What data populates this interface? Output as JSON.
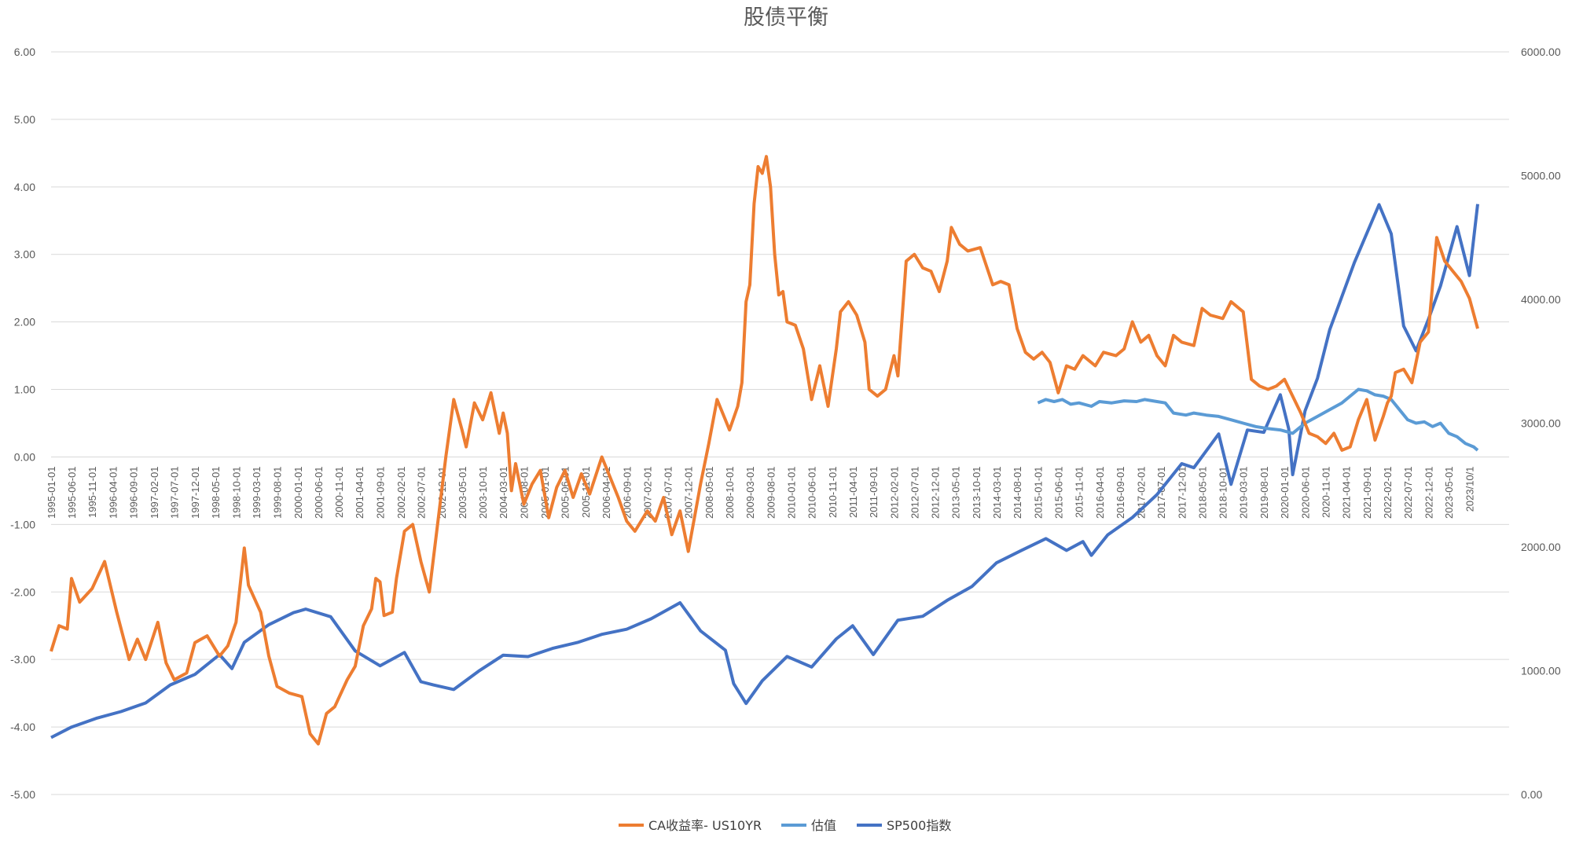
{
  "chart_data": {
    "type": "line",
    "title": "股债平衡",
    "left_axis": {
      "ylim": [
        -5,
        6
      ],
      "ticks": [
        "6.00",
        "5.00",
        "4.00",
        "3.00",
        "2.00",
        "1.00",
        "0.00",
        "-1.00",
        "-2.00",
        "-3.00",
        "-4.00",
        "-5.00"
      ]
    },
    "right_axis": {
      "ylim": [
        0,
        6000
      ],
      "ticks": [
        "6000.00",
        "5000.00",
        "4000.00",
        "3000.00",
        "2000.00",
        "1000.00",
        "0.00"
      ]
    },
    "x_axis_labels": [
      "1995-01-01",
      "1995-06-01",
      "1995-11-01",
      "1996-04-01",
      "1996-09-01",
      "1997-02-01",
      "1997-07-01",
      "1997-12-01",
      "1998-05-01",
      "1998-10-01",
      "1999-03-01",
      "1999-08-01",
      "2000-01-01",
      "2000-06-01",
      "2000-11-01",
      "2001-04-01",
      "2001-09-01",
      "2002-02-01",
      "2002-07-01",
      "2002-12-01",
      "2003-05-01",
      "2003-10-01",
      "2004-03-01",
      "2004-08-01",
      "2005-01-01",
      "2005-06-01",
      "2005-11-01",
      "2006-04-01",
      "2006-09-01",
      "2007-02-01",
      "2007-07-01",
      "2007-12-01",
      "2008-05-01",
      "2008-10-01",
      "2009-03-01",
      "2009-08-01",
      "2010-01-01",
      "2010-06-01",
      "2010-11-01",
      "2011-04-01",
      "2011-09-01",
      "2012-02-01",
      "2012-07-01",
      "2012-12-01",
      "2013-05-01",
      "2013-10-01",
      "2014-03-01",
      "2014-08-01",
      "2015-01-01",
      "2015-06-01",
      "2015-11-01",
      "2016-04-01",
      "2016-09-01",
      "2017-02-01",
      "2017-07-01",
      "2017-12-01",
      "2018-05-01",
      "2018-10-01",
      "2019-03-01",
      "2019-08-01",
      "2020-01-01",
      "2020-06-01",
      "2020-11-01",
      "2021-04-01",
      "2021-09-01",
      "2022-02-01",
      "2022-07-01",
      "2022-12-01",
      "2023-05-01",
      "2023/10/1"
    ],
    "legend_position": "bottom",
    "grid": true,
    "series": [
      {
        "name": "CA收益率- US10YR",
        "axis": "left",
        "color": "#ed7d31",
        "points": [
          [
            "1995-01",
            -2.88
          ],
          [
            "1995-03",
            -2.5
          ],
          [
            "1995-05",
            -2.55
          ],
          [
            "1995-06",
            -1.8
          ],
          [
            "1995-08",
            -2.15
          ],
          [
            "1995-11",
            -1.95
          ],
          [
            "1996-02",
            -1.55
          ],
          [
            "1996-05",
            -2.3
          ],
          [
            "1996-08",
            -3.0
          ],
          [
            "1996-10",
            -2.7
          ],
          [
            "1996-12",
            -3.0
          ],
          [
            "1997-03",
            -2.45
          ],
          [
            "1997-05",
            -3.05
          ],
          [
            "1997-07",
            -3.3
          ],
          [
            "1997-10",
            -3.2
          ],
          [
            "1997-12",
            -2.75
          ],
          [
            "1998-03",
            -2.65
          ],
          [
            "1998-06",
            -2.95
          ],
          [
            "1998-08",
            -2.8
          ],
          [
            "1998-10",
            -2.45
          ],
          [
            "1998-12",
            -1.35
          ],
          [
            "1999-01",
            -1.9
          ],
          [
            "1999-04",
            -2.3
          ],
          [
            "1999-06",
            -2.95
          ],
          [
            "1999-08",
            -3.4
          ],
          [
            "1999-11",
            -3.5
          ],
          [
            "2000-02",
            -3.55
          ],
          [
            "2000-04",
            -4.1
          ],
          [
            "2000-06",
            -4.25
          ],
          [
            "2000-08",
            -3.8
          ],
          [
            "2000-10",
            -3.7
          ],
          [
            "2001-01",
            -3.3
          ],
          [
            "2001-03",
            -3.1
          ],
          [
            "2001-05",
            -2.5
          ],
          [
            "2001-07",
            -2.25
          ],
          [
            "2001-08",
            -1.8
          ],
          [
            "2001-09",
            -1.85
          ],
          [
            "2001-10",
            -2.35
          ],
          [
            "2001-12",
            -2.3
          ],
          [
            "2002-01",
            -1.8
          ],
          [
            "2002-03",
            -1.1
          ],
          [
            "2002-05",
            -1.0
          ],
          [
            "2002-07",
            -1.55
          ],
          [
            "2002-09",
            -2.0
          ],
          [
            "2002-11",
            -1.0
          ],
          [
            "2003-01",
            0.0
          ],
          [
            "2003-03",
            0.85
          ],
          [
            "2003-05",
            0.4
          ],
          [
            "2003-06",
            0.15
          ],
          [
            "2003-08",
            0.8
          ],
          [
            "2003-10",
            0.55
          ],
          [
            "2003-12",
            0.95
          ],
          [
            "2004-02",
            0.35
          ],
          [
            "2004-03",
            0.65
          ],
          [
            "2004-04",
            0.35
          ],
          [
            "2004-05",
            -0.5
          ],
          [
            "2004-06",
            -0.1
          ],
          [
            "2004-08",
            -0.7
          ],
          [
            "2004-10",
            -0.4
          ],
          [
            "2004-12",
            -0.2
          ],
          [
            "2005-02",
            -0.9
          ],
          [
            "2005-04",
            -0.45
          ],
          [
            "2005-06",
            -0.2
          ],
          [
            "2005-08",
            -0.6
          ],
          [
            "2005-10",
            -0.25
          ],
          [
            "2005-12",
            -0.55
          ],
          [
            "2006-03",
            0.0
          ],
          [
            "2006-05",
            -0.3
          ],
          [
            "2006-07",
            -0.6
          ],
          [
            "2006-09",
            -0.95
          ],
          [
            "2006-11",
            -1.1
          ],
          [
            "2007-02",
            -0.8
          ],
          [
            "2007-04",
            -0.95
          ],
          [
            "2007-06",
            -0.6
          ],
          [
            "2007-08",
            -1.15
          ],
          [
            "2007-10",
            -0.8
          ],
          [
            "2007-12",
            -1.4
          ],
          [
            "2008-03",
            -0.4
          ],
          [
            "2008-05",
            0.2
          ],
          [
            "2008-07",
            0.85
          ],
          [
            "2008-09",
            0.55
          ],
          [
            "2008-10",
            0.4
          ],
          [
            "2008-12",
            0.75
          ],
          [
            "2009-01",
            1.1
          ],
          [
            "2009-02",
            2.3
          ],
          [
            "2009-03",
            2.55
          ],
          [
            "2009-04",
            3.75
          ],
          [
            "2009-05",
            4.3
          ],
          [
            "2009-06",
            4.2
          ],
          [
            "2009-07",
            4.45
          ],
          [
            "2009-08",
            4.0
          ],
          [
            "2009-09",
            3.0
          ],
          [
            "2009-10",
            2.4
          ],
          [
            "2009-11",
            2.45
          ],
          [
            "2009-12",
            2.0
          ],
          [
            "2010-02",
            1.95
          ],
          [
            "2010-04",
            1.6
          ],
          [
            "2010-06",
            0.85
          ],
          [
            "2010-08",
            1.35
          ],
          [
            "2010-10",
            0.75
          ],
          [
            "2010-12",
            1.6
          ],
          [
            "2011-01",
            2.15
          ],
          [
            "2011-03",
            2.3
          ],
          [
            "2011-05",
            2.1
          ],
          [
            "2011-07",
            1.7
          ],
          [
            "2011-08",
            1.0
          ],
          [
            "2011-10",
            0.9
          ],
          [
            "2011-12",
            1.0
          ],
          [
            "2012-02",
            1.5
          ],
          [
            "2012-03",
            1.2
          ],
          [
            "2012-05",
            2.9
          ],
          [
            "2012-07",
            3.0
          ],
          [
            "2012-09",
            2.8
          ],
          [
            "2012-11",
            2.75
          ],
          [
            "2013-01",
            2.45
          ],
          [
            "2013-03",
            2.9
          ],
          [
            "2013-04",
            3.4
          ],
          [
            "2013-06",
            3.15
          ],
          [
            "2013-08",
            3.05
          ],
          [
            "2013-11",
            3.1
          ],
          [
            "2014-02",
            2.55
          ],
          [
            "2014-04",
            2.6
          ],
          [
            "2014-06",
            2.55
          ],
          [
            "2014-08",
            1.9
          ],
          [
            "2014-10",
            1.55
          ],
          [
            "2014-12",
            1.45
          ],
          [
            "2015-02",
            1.55
          ],
          [
            "2015-04",
            1.4
          ],
          [
            "2015-06",
            0.95
          ],
          [
            "2015-08",
            1.35
          ],
          [
            "2015-10",
            1.3
          ],
          [
            "2015-12",
            1.5
          ],
          [
            "2016-03",
            1.35
          ],
          [
            "2016-05",
            1.55
          ],
          [
            "2016-08",
            1.5
          ],
          [
            "2016-10",
            1.6
          ],
          [
            "2016-12",
            2.0
          ],
          [
            "2017-02",
            1.7
          ],
          [
            "2017-04",
            1.8
          ],
          [
            "2017-06",
            1.5
          ],
          [
            "2017-08",
            1.35
          ],
          [
            "2017-10",
            1.8
          ],
          [
            "2017-12",
            1.7
          ],
          [
            "2018-03",
            1.65
          ],
          [
            "2018-05",
            2.2
          ],
          [
            "2018-07",
            2.1
          ],
          [
            "2018-10",
            2.05
          ],
          [
            "2018-12",
            2.3
          ],
          [
            "2019-03",
            2.15
          ],
          [
            "2019-05",
            1.15
          ],
          [
            "2019-07",
            1.05
          ],
          [
            "2019-09",
            1.0
          ],
          [
            "2019-11",
            1.05
          ],
          [
            "2020-01",
            1.15
          ],
          [
            "2020-03",
            0.9
          ],
          [
            "2020-05",
            0.65
          ],
          [
            "2020-07",
            0.35
          ],
          [
            "2020-09",
            0.3
          ],
          [
            "2020-11",
            0.2
          ],
          [
            "2021-01",
            0.35
          ],
          [
            "2021-03",
            0.1
          ],
          [
            "2021-05",
            0.15
          ],
          [
            "2021-07",
            0.55
          ],
          [
            "2021-09",
            0.85
          ],
          [
            "2021-11",
            0.25
          ],
          [
            "2022-01",
            0.6
          ],
          [
            "2022-02",
            0.8
          ],
          [
            "2022-03",
            0.9
          ],
          [
            "2022-04",
            1.25
          ],
          [
            "2022-06",
            1.3
          ],
          [
            "2022-08",
            1.1
          ],
          [
            "2022-10",
            1.7
          ],
          [
            "2022-12",
            1.85
          ],
          [
            "2023-02",
            3.25
          ],
          [
            "2023-04",
            2.9
          ],
          [
            "2023-06",
            2.75
          ],
          [
            "2023-08",
            2.6
          ],
          [
            "2023-10",
            2.35
          ],
          [
            "2023-12",
            1.9
          ]
        ],
        "valuation": []
      },
      {
        "name": "估值",
        "axis": "left",
        "color": "#5b9bd5",
        "points": []
      },
      {
        "name": "SP500指数",
        "axis": "right",
        "color": "#4472c4",
        "points": []
      }
    ]
  },
  "legend": {
    "items": [
      {
        "label": "CA收益率- US10YR",
        "color": "#ed7d31"
      },
      {
        "label": "估值",
        "color": "#5b9bd5"
      },
      {
        "label": "SP500指数",
        "color": "#4472c4"
      }
    ]
  }
}
